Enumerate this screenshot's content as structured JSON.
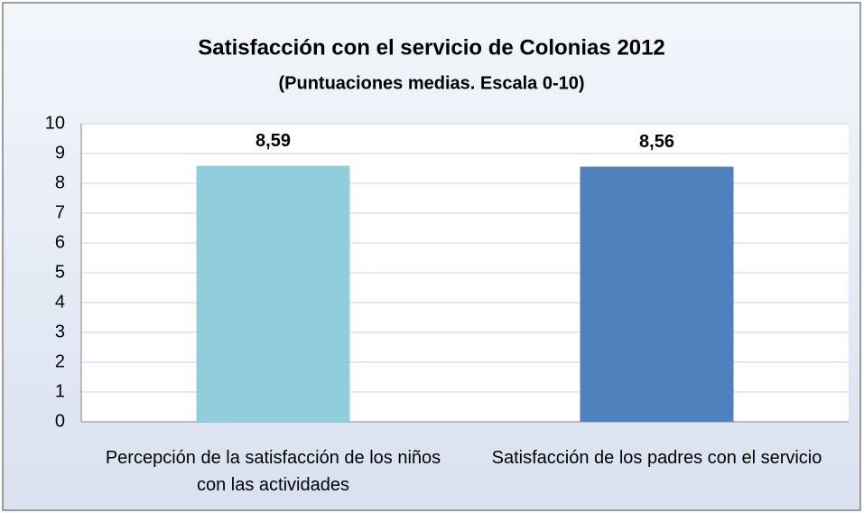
{
  "chart_data": {
    "type": "bar",
    "title": "Satisfacción con el servicio de Colonias 2012",
    "subtitle": "(Puntuaciones medias. Escala 0-10)",
    "categories": [
      "Percepción de la satisfacción de los niños con las actividades",
      "Satisfacción de los padres con el servicio"
    ],
    "values": [
      8.59,
      8.56
    ],
    "value_labels": [
      "8,59",
      "8,56"
    ],
    "colors": [
      "#92cddc",
      "#4f81bd"
    ],
    "ylim": [
      0,
      10
    ],
    "yticks": [
      0,
      1,
      2,
      3,
      4,
      5,
      6,
      7,
      8,
      9,
      10
    ],
    "grid": true
  }
}
